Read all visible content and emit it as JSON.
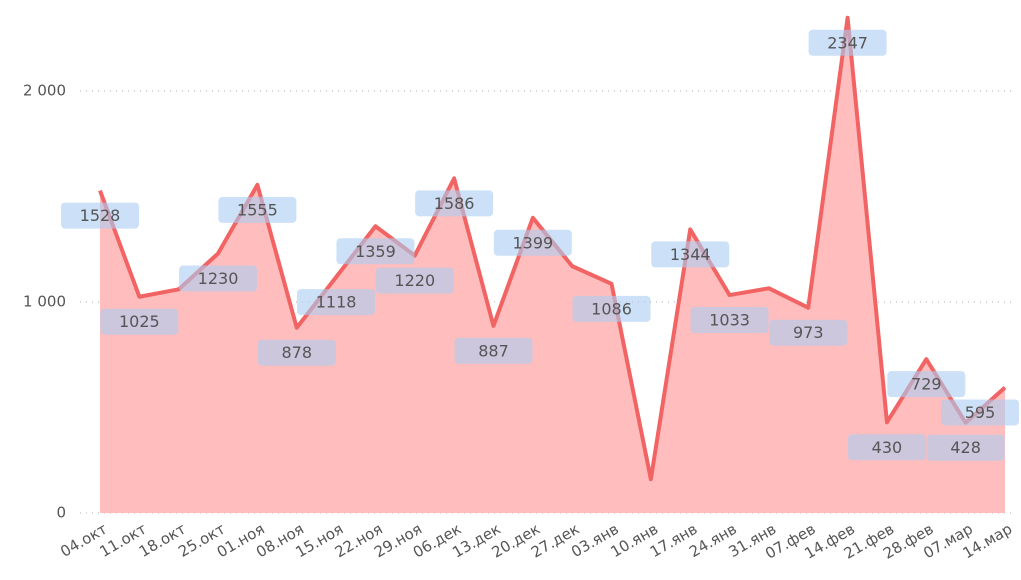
{
  "chart_data": {
    "type": "area",
    "categories": [
      "04.окт",
      "11.окт",
      "18.окт",
      "25.окт",
      "01.ноя",
      "08.ноя",
      "15.ноя",
      "22.ноя",
      "29.ноя",
      "06.дек",
      "13.дек",
      "20.дек",
      "27.дек",
      "03.янв",
      "10.янв",
      "17.янв",
      "24.янв",
      "31.янв",
      "07.фев",
      "14.фев",
      "21.фев",
      "28.фев",
      "07.мар",
      "14.мар"
    ],
    "values": [
      1528,
      1025,
      1060,
      1230,
      1555,
      878,
      1118,
      1359,
      1220,
      1586,
      887,
      1399,
      1170,
      1086,
      160,
      1344,
      1033,
      1065,
      973,
      2347,
      430,
      729,
      428,
      595
    ],
    "value_labels": [
      "1528",
      "1025",
      null,
      "1230",
      "1555",
      "878",
      "1118",
      "1359",
      "1220",
      "1586",
      "887",
      "1399",
      null,
      "1086",
      null,
      "1344",
      "1033",
      null,
      "973",
      "2347",
      "430",
      "729",
      "428",
      "595"
    ],
    "color": "#f26464",
    "area_color": "#ffbdbd",
    "ylim": [
      0,
      2400
    ],
    "yticks": [
      {
        "value": 0,
        "label": "0"
      },
      {
        "value": 1000,
        "label": "1 000"
      },
      {
        "value": 2000,
        "label": "2 000"
      }
    ],
    "grid": true
  }
}
